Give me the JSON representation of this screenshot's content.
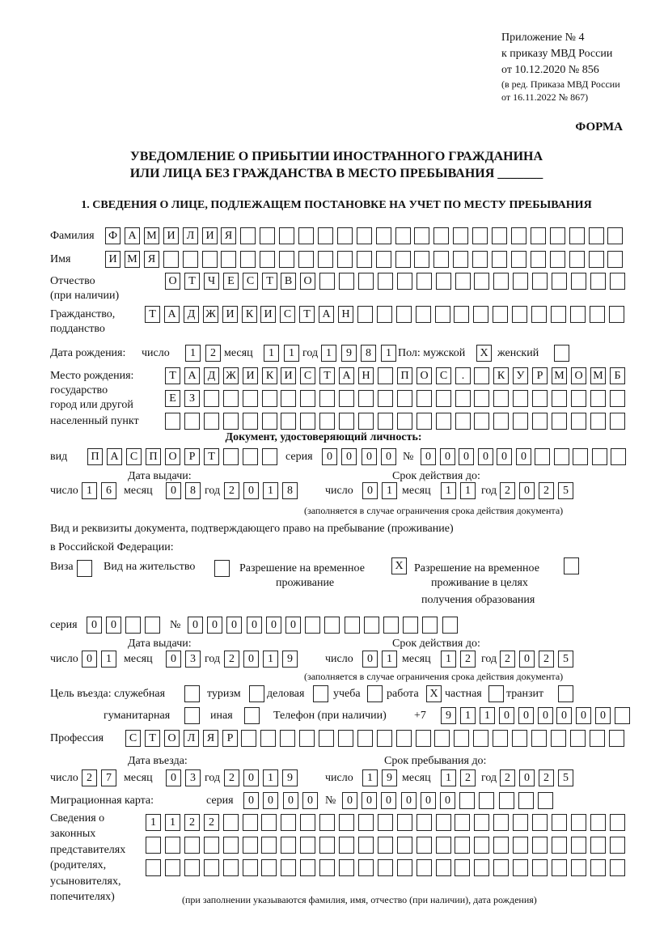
{
  "header": {
    "appendix": "Приложение № 4",
    "order": "к приказу МВД России",
    "order_date": "от 10.12.2020 № 856",
    "edit1": "(в ред. Приказа МВД России",
    "edit2": "от 16.11.2022 № 867)",
    "form": "ФОРМА",
    "title1": "УВЕДОМЛЕНИЕ О ПРИБЫТИИ ИНОСТРАННОГО ГРАЖДАНИНА",
    "title2": "ИЛИ ЛИЦА БЕЗ ГРАЖДАНСТВА В МЕСТО ПРЕБЫВАНИЯ _______",
    "section1": "1. СВЕДЕНИЯ О ЛИЦЕ, ПОДЛЕЖАЩЕМ ПОСТАНОВКЕ НА УЧЕТ ПО МЕСТУ ПРЕБЫВАНИЯ"
  },
  "labels": {
    "surname": "Фамилия",
    "name": "Имя",
    "patronymic1": "Отчество",
    "patronymic2": "(при наличии)",
    "citizenship1": "Гражданство,",
    "citizenship2": "подданство",
    "dob": "Дата рождения:",
    "day": "число",
    "month": "месяц",
    "year": "год",
    "sex": "Пол: мужской",
    "female": "женский",
    "pob1": "Место рождения:",
    "pob2": "государство",
    "pob3": "город или другой",
    "pob4": "населенный пункт",
    "id_doc": "Документ, удостоверяющий личность:",
    "kind": "вид",
    "series": "серия",
    "number": "№",
    "issue_date": "Дата выдачи:",
    "valid_until": "Срок действия до:",
    "valid_note": "(заполняется в случае ограничения срока действия документа)",
    "right_doc1": "Вид и реквизиты документа, подтверждающего право на пребывание (проживание)",
    "right_doc2": "в Российской Федерации:",
    "visa": "Виза",
    "residence": "Вид на жительство",
    "trp1": "Разрешение на временное",
    "trp2": "проживание",
    "trpe1": "Разрешение на временное",
    "trpe2": "проживание в целях",
    "trpe3": "получения образования",
    "purpose": "Цель въезда: служебная",
    "tourism": "туризм",
    "business": "деловая",
    "study": "учеба",
    "work": "работа",
    "private": "частная",
    "transit": "транзит",
    "humanitarian": "гуманитарная",
    "other": "иная",
    "phone": "Телефон (при наличии)",
    "phone_prefix": "+7",
    "profession": "Профессия",
    "entry_date": "Дата въезда:",
    "stay_until": "Срок пребывания до:",
    "migration_card": "Миграционная карта:",
    "reps1": "Сведения о",
    "reps2": "законных",
    "reps3": "представителях",
    "reps4": "(родителях,",
    "reps5": "усыновителях,",
    "reps6": "попечителях)",
    "reps_note": "(при заполнении указываются фамилия, имя, отчество (при наличии), дата рождения)"
  },
  "fields": {
    "surname": [
      "Ф",
      "А",
      "М",
      "И",
      "Л",
      "И",
      "Я",
      "",
      "",
      "",
      "",
      "",
      "",
      "",
      "",
      "",
      "",
      "",
      "",
      "",
      "",
      "",
      "",
      "",
      "",
      "",
      ""
    ],
    "name": [
      "И",
      "М",
      "Я",
      "",
      "",
      "",
      "",
      "",
      "",
      "",
      "",
      "",
      "",
      "",
      "",
      "",
      "",
      "",
      "",
      "",
      "",
      "",
      "",
      "",
      "",
      "",
      ""
    ],
    "patronymic": [
      "О",
      "Т",
      "Ч",
      "Е",
      "С",
      "Т",
      "В",
      "О",
      "",
      "",
      "",
      "",
      "",
      "",
      "",
      "",
      "",
      "",
      "",
      "",
      "",
      "",
      "",
      ""
    ],
    "citizenship": [
      "Т",
      "А",
      "Д",
      "Ж",
      "И",
      "К",
      "И",
      "С",
      "Т",
      "А",
      "Н",
      "",
      "",
      "",
      "",
      "",
      "",
      "",
      "",
      "",
      "",
      "",
      "",
      "",
      ""
    ],
    "dob_day": [
      "1",
      "2"
    ],
    "dob_month": [
      "1",
      "1"
    ],
    "dob_year": [
      "1",
      "9",
      "8",
      "1"
    ],
    "sex_male": [
      "X"
    ],
    "sex_female": [
      ""
    ],
    "pob_1": [
      "Т",
      "А",
      "Д",
      "Ж",
      "И",
      "К",
      "И",
      "С",
      "Т",
      "А",
      "Н",
      "",
      "П",
      "О",
      "С",
      ".",
      "",
      "К",
      "У",
      "Р",
      "М",
      "О",
      "М",
      "Б"
    ],
    "pob_2": [
      "Е",
      "З",
      "",
      "",
      "",
      "",
      "",
      "",
      "",
      "",
      "",
      "",
      "",
      "",
      "",
      "",
      "",
      "",
      "",
      "",
      "",
      "",
      "",
      ""
    ],
    "pob_3": [
      "",
      "",
      "",
      "",
      "",
      "",
      "",
      "",
      "",
      "",
      "",
      "",
      "",
      "",
      "",
      "",
      "",
      "",
      "",
      "",
      "",
      "",
      "",
      ""
    ],
    "doc_kind": [
      "П",
      "А",
      "С",
      "П",
      "О",
      "Р",
      "Т",
      "",
      "",
      ""
    ],
    "doc_series": [
      "0",
      "0",
      "0",
      "0"
    ],
    "doc_number": [
      "0",
      "0",
      "0",
      "0",
      "0",
      "0",
      "",
      "",
      "",
      "",
      ""
    ],
    "doc_issue_day": [
      "1",
      "6"
    ],
    "doc_issue_month": [
      "0",
      "8"
    ],
    "doc_issue_year": [
      "2",
      "0",
      "1",
      "8"
    ],
    "doc_valid_day": [
      "0",
      "1"
    ],
    "doc_valid_month": [
      "1",
      "1"
    ],
    "doc_valid_year": [
      "2",
      "0",
      "2",
      "5"
    ],
    "visa": [
      ""
    ],
    "residence": [
      ""
    ],
    "trp": [
      "X"
    ],
    "trpe": [
      ""
    ],
    "right_series": [
      "0",
      "0",
      "",
      ""
    ],
    "right_number": [
      "0",
      "0",
      "0",
      "0",
      "0",
      "0",
      "",
      "",
      "",
      "",
      "",
      "",
      "",
      ""
    ],
    "right_issue_day": [
      "0",
      "1"
    ],
    "right_issue_month": [
      "0",
      "3"
    ],
    "right_issue_year": [
      "2",
      "0",
      "1",
      "9"
    ],
    "right_valid_day": [
      "0",
      "1"
    ],
    "right_valid_month": [
      "1",
      "2"
    ],
    "right_valid_year": [
      "2",
      "0",
      "2",
      "5"
    ],
    "p_service": [
      ""
    ],
    "p_tourism": [
      ""
    ],
    "p_business": [
      ""
    ],
    "p_study": [
      ""
    ],
    "p_work": [
      "X"
    ],
    "p_private": [
      ""
    ],
    "p_transit": [
      ""
    ],
    "p_humanitarian": [
      ""
    ],
    "p_other": [
      ""
    ],
    "phone": [
      "9",
      "1",
      "1",
      "0",
      "0",
      "0",
      "0",
      "0",
      "0",
      ""
    ],
    "profession": [
      "С",
      "Т",
      "О",
      "Л",
      "Я",
      "Р",
      "",
      "",
      "",
      "",
      "",
      "",
      "",
      "",
      "",
      "",
      "",
      "",
      "",
      "",
      "",
      "",
      "",
      "",
      "",
      ""
    ],
    "entry_day": [
      "2",
      "7"
    ],
    "entry_month": [
      "0",
      "3"
    ],
    "entry_year": [
      "2",
      "0",
      "1",
      "9"
    ],
    "stay_day": [
      "1",
      "9"
    ],
    "stay_month": [
      "1",
      "2"
    ],
    "stay_year": [
      "2",
      "0",
      "2",
      "5"
    ],
    "mc_series": [
      "0",
      "0",
      "0",
      "0"
    ],
    "mc_number": [
      "0",
      "0",
      "0",
      "0",
      "0",
      "0",
      "",
      "",
      "",
      "",
      ""
    ],
    "reps_1": [
      "1",
      "1",
      "2",
      "2",
      "",
      "",
      "",
      "",
      "",
      "",
      "",
      "",
      "",
      "",
      "",
      "",
      "",
      "",
      "",
      "",
      "",
      "",
      "",
      "",
      ""
    ],
    "reps_2": [
      "",
      "",
      "",
      "",
      "",
      "",
      "",
      "",
      "",
      "",
      "",
      "",
      "",
      "",
      "",
      "",
      "",
      "",
      "",
      "",
      "",
      "",
      "",
      "",
      ""
    ],
    "reps_3": [
      "",
      "",
      "",
      "",
      "",
      "",
      "",
      "",
      "",
      "",
      "",
      "",
      "",
      "",
      "",
      "",
      "",
      "",
      "",
      "",
      "",
      "",
      "",
      "",
      ""
    ]
  }
}
